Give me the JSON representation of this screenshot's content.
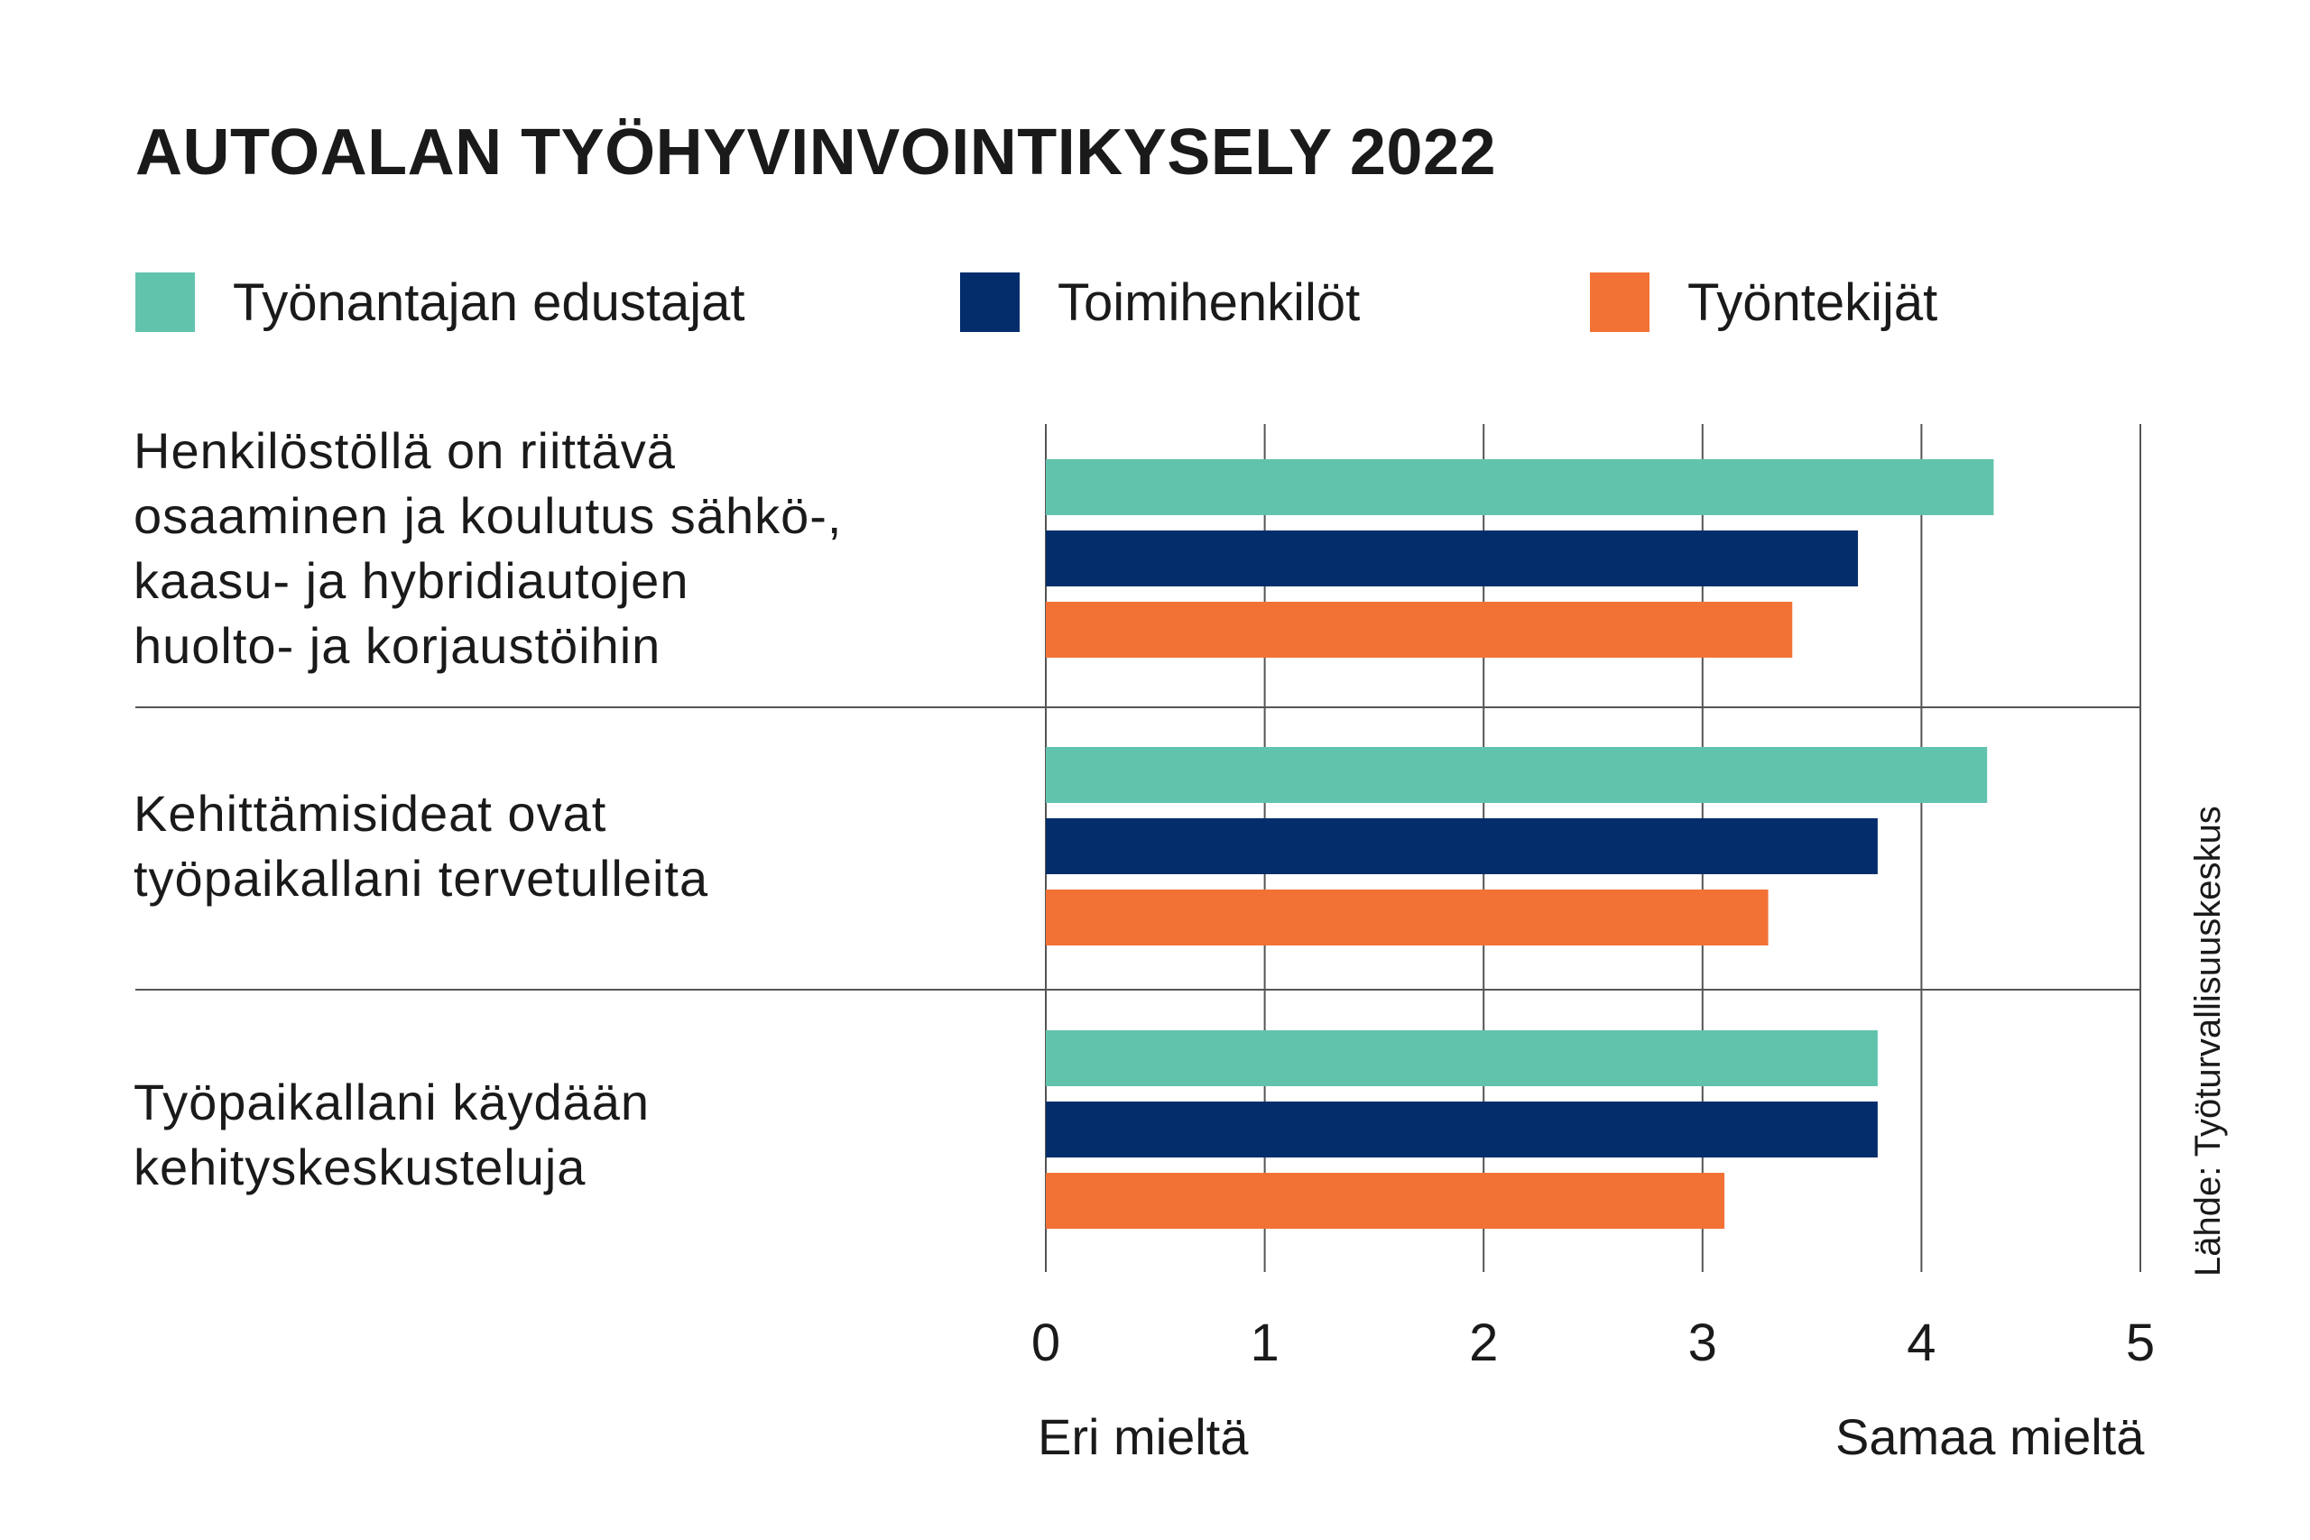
{
  "title": "AUTOALAN TYÖHYVINVOINTIKYSELY 2022",
  "legend": [
    {
      "label": "Työnantajan edustajat",
      "color": "#62c3ad"
    },
    {
      "label": "Toimihenkilöt",
      "color": "#032d6b"
    },
    {
      "label": "Työntekijät",
      "color": "#f27236"
    }
  ],
  "source": "Lähde: Työturvallisuuskeskus",
  "axis_ends": {
    "left": "Eri mieltä",
    "right": "Samaa mieltä"
  },
  "chart_data": {
    "type": "bar",
    "orientation": "horizontal",
    "categories": [
      [
        "Henkilöstöllä on riittävä",
        "osaaminen ja koulutus sähkö-,",
        "kaasu- ja hybridiautojen",
        "huolto- ja korjaustöihin"
      ],
      [
        "Kehittämisideat ovat",
        "työpaikallani tervetulleita"
      ],
      [
        "Työpaikallani käydään",
        "kehityskeskusteluja"
      ]
    ],
    "series": [
      {
        "name": "Työnantajan edustajat",
        "color": "#62c3ad",
        "values": [
          4.33,
          4.3,
          3.8
        ]
      },
      {
        "name": "Toimihenkilöt",
        "color": "#032d6b",
        "values": [
          3.71,
          3.8,
          3.8
        ]
      },
      {
        "name": "Työntekijät",
        "color": "#f27236",
        "values": [
          3.41,
          3.3,
          3.1
        ]
      }
    ],
    "xlim": [
      0,
      5
    ],
    "xticks": [
      "0",
      "1",
      "2",
      "3",
      "4",
      "5"
    ],
    "grid": true
  }
}
